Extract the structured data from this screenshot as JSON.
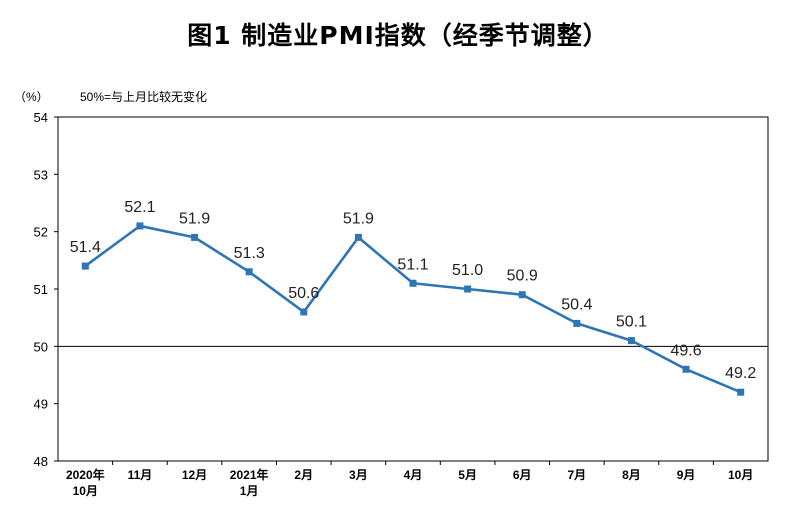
{
  "title": "图1 制造业PMI指数（经季节调整）",
  "unit_label": "（%）",
  "note": "50%=与上月比较无变化",
  "colors": {
    "series": "#2e75b6",
    "axis": "#000000",
    "reference": "#000000"
  },
  "chart_data": {
    "type": "line",
    "title": "图1 制造业PMI指数（经季节调整）",
    "categories": [
      [
        "2020年",
        "10月"
      ],
      [
        "11月"
      ],
      [
        "12月"
      ],
      [
        "2021年",
        "1月"
      ],
      [
        "2月"
      ],
      [
        "3月"
      ],
      [
        "4月"
      ],
      [
        "5月"
      ],
      [
        "6月"
      ],
      [
        "7月"
      ],
      [
        "8月"
      ],
      [
        "9月"
      ],
      [
        "10月"
      ]
    ],
    "series": [
      {
        "values": [
          51.4,
          52.1,
          51.9,
          51.3,
          50.6,
          51.9,
          51.1,
          51.0,
          50.9,
          50.4,
          50.1,
          49.6,
          49.2
        ]
      }
    ],
    "data_labels": [
      "51.4",
      "52.1",
      "51.9",
      "51.3",
      "50.6",
      "51.9",
      "51.1",
      "51.0",
      "50.9",
      "50.4",
      "50.1",
      "49.6",
      "49.2"
    ],
    "ylim": [
      48,
      54
    ],
    "yticks": [
      48,
      49,
      50,
      51,
      52,
      53,
      54
    ],
    "reference_line": 50,
    "grid": false,
    "legend": "none",
    "ylabel": "（%）"
  }
}
